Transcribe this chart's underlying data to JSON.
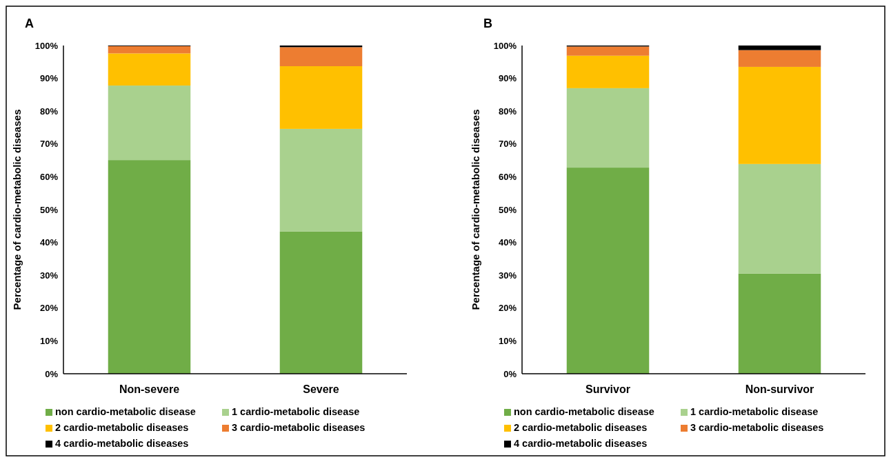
{
  "chart_data": [
    {
      "type": "bar",
      "title": "A",
      "ylabel": "Percentage of cardio-metabolic diseases",
      "categories": [
        "Non-severe",
        "Severe"
      ],
      "stacked": true,
      "legend": "bottom",
      "grid": false,
      "ylim": [
        0,
        100
      ],
      "yticks": [
        {
          "value": 0,
          "label": "0%"
        },
        {
          "value": 10,
          "label": "10%"
        },
        {
          "value": 20,
          "label": "20%"
        },
        {
          "value": 30,
          "label": "30%"
        },
        {
          "value": 40,
          "label": "40%"
        },
        {
          "value": 50,
          "label": "50%"
        },
        {
          "value": 60,
          "label": "60%"
        },
        {
          "value": 70,
          "label": "70%"
        },
        {
          "value": 80,
          "label": "80%"
        },
        {
          "value": 90,
          "label": "90%"
        },
        {
          "value": 100,
          "label": "100%"
        }
      ],
      "series": [
        {
          "name": "non cardio-metabolic disease",
          "color": "#70ad47",
          "values": [
            65.1,
            43.3
          ]
        },
        {
          "name": "1 cardio-metabolic disease",
          "color": "#a9d18e",
          "values": [
            22.7,
            31.3
          ]
        },
        {
          "name": "2 cardio-metabolic diseases",
          "color": "#ffc000",
          "values": [
            9.8,
            19.1
          ]
        },
        {
          "name": "3 cardio-metabolic diseases",
          "color": "#ed7d31",
          "values": [
            2.2,
            5.8
          ]
        },
        {
          "name": "4 cardio-metabolic diseases",
          "color": "#000000",
          "values": [
            0.2,
            0.5
          ]
        }
      ]
    },
    {
      "type": "bar",
      "title": "B",
      "ylabel": "Percentage of cardio-metabolic diseases",
      "categories": [
        "Survivor",
        "Non-survivor"
      ],
      "stacked": true,
      "legend": "bottom",
      "grid": false,
      "ylim": [
        0,
        100
      ],
      "yticks": [
        {
          "value": 0,
          "label": "0%"
        },
        {
          "value": 10,
          "label": "10%"
        },
        {
          "value": 20,
          "label": "20%"
        },
        {
          "value": 30,
          "label": "30%"
        },
        {
          "value": 40,
          "label": "40%"
        },
        {
          "value": 50,
          "label": "50%"
        },
        {
          "value": 60,
          "label": "60%"
        },
        {
          "value": 70,
          "label": "70%"
        },
        {
          "value": 80,
          "label": "80%"
        },
        {
          "value": 90,
          "label": "90%"
        },
        {
          "value": 100,
          "label": "100%"
        }
      ],
      "series": [
        {
          "name": "non cardio-metabolic disease",
          "color": "#70ad47",
          "values": [
            62.8,
            30.5
          ]
        },
        {
          "name": "1 cardio-metabolic disease",
          "color": "#a9d18e",
          "values": [
            24.2,
            33.4
          ]
        },
        {
          "name": "2 cardio-metabolic diseases",
          "color": "#ffc000",
          "values": [
            9.9,
            29.6
          ]
        },
        {
          "name": "3 cardio-metabolic diseases",
          "color": "#ed7d31",
          "values": [
            2.8,
            5.1
          ]
        },
        {
          "name": "4 cardio-metabolic diseases",
          "color": "#000000",
          "values": [
            0.3,
            1.4
          ]
        }
      ]
    }
  ]
}
